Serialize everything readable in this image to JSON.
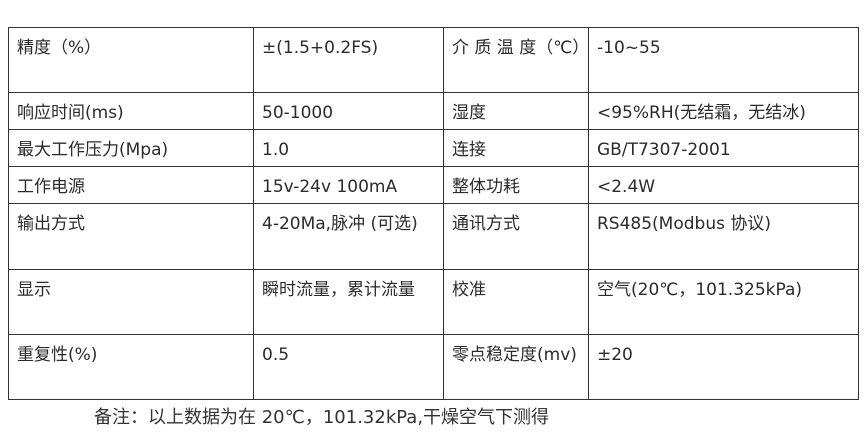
{
  "rows": [
    {
      "k1": "精度（%）",
      "v1": "±(1.5+0.2FS)",
      "k2": "介 质 温 度（℃）",
      "v2": "-10~55"
    },
    {
      "k1": "响应时间(ms)",
      "v1": "50-1000",
      "k2": "湿度",
      "v2": "<95%RH(无结霜，无结冰)"
    },
    {
      "k1": "最大工作压力(Mpa)",
      "v1": "1.0",
      "k2": "连接",
      "v2": "GB/T7307-2001"
    },
    {
      "k1": "工作电源",
      "v1": "15v-24v 100mA",
      "k2": "整体功耗",
      "v2": "<2.4W"
    },
    {
      "k1": "输出方式",
      "v1": "4-20Ma,脉冲 (可选)",
      "k2": "通讯方式",
      "v2": "RS485(Modbus 协议)"
    },
    {
      "k1": "显示",
      "v1": "瞬时流量，累计流量",
      "k2": "校准",
      "v2": "空气(20℃，101.325kPa)"
    },
    {
      "k1": "重复性(%)",
      "v1": "0.5",
      "k2": "零点稳定度(mv)",
      "v2": "±20"
    }
  ],
  "note": "备注：以上数据为在 20℃，101.32kPa,干燥空气下测得"
}
